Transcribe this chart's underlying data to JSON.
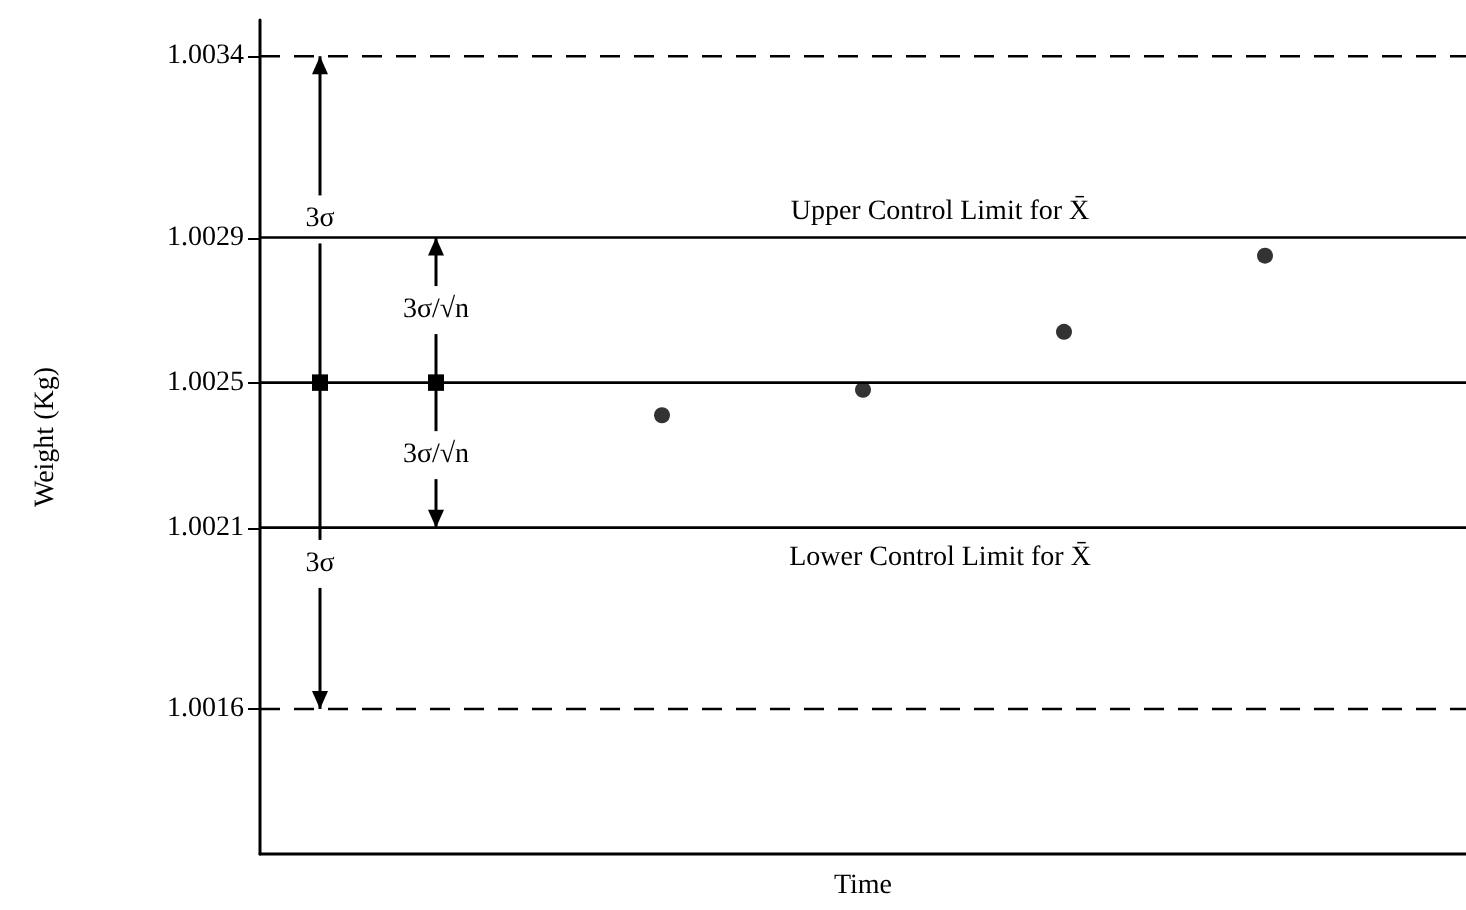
{
  "chart_data": {
    "type": "scatter",
    "xlabel": "Time",
    "ylabel": "Weight (Kg)",
    "categories": [
      null,
      null,
      null,
      null,
      null,
      null,
      null
    ],
    "values": [
      null,
      null,
      1.00241,
      1.00248,
      1.00264,
      1.00285,
      null
    ],
    "color": "#000000",
    "marker": "circle",
    "grid": false,
    "tick_labels": "y",
    "ylim": [
      1.0012,
      1.0035
    ],
    "yticks": [
      1.0016,
      1.0021,
      1.0025,
      1.0029,
      1.0034
    ],
    "ref_lines": [
      {
        "axis": "y",
        "value": 1.0034,
        "line_style": "dashed",
        "color": "#000000"
      },
      {
        "axis": "y",
        "value": 1.0029,
        "label": "Upper Control Limit for X̄",
        "line_style": "solid",
        "color": "#000000"
      },
      {
        "axis": "y",
        "value": 1.0025,
        "line_style": "solid",
        "color": "#000000"
      },
      {
        "axis": "y",
        "value": 1.0021,
        "label": "Lower Control Limit for X̄",
        "line_style": "solid",
        "color": "#000000"
      },
      {
        "axis": "y",
        "value": 1.0016,
        "line_style": "dashed",
        "color": "#000000"
      }
    ],
    "annotations": [
      {
        "text": "3σ",
        "y": 1.00295
      },
      {
        "text": "3σ/√n",
        "y": 1.0027
      },
      {
        "text": "3σ/√n",
        "y": 1.0023
      },
      {
        "text": "3σ",
        "y": 1.002
      }
    ]
  }
}
